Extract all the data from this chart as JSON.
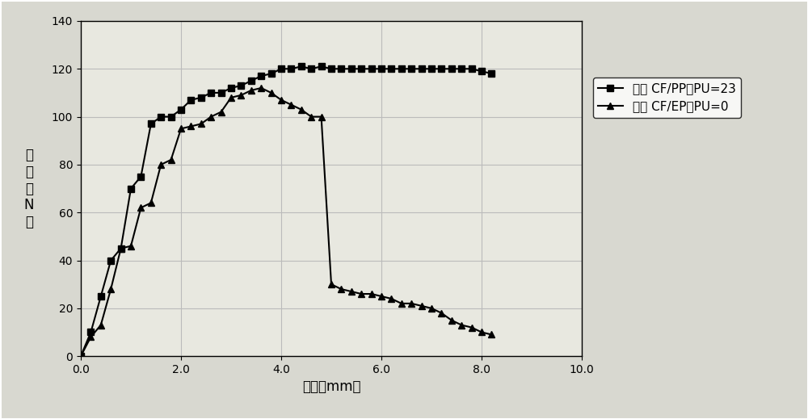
{
  "series1_label": "应力 CF/PP：PU=23",
  "series2_label": "应力 CF/EP：PU=0",
  "series1_x": [
    0.0,
    0.2,
    0.4,
    0.6,
    0.8,
    1.0,
    1.2,
    1.4,
    1.6,
    1.8,
    2.0,
    2.2,
    2.4,
    2.6,
    2.8,
    3.0,
    3.2,
    3.4,
    3.6,
    3.8,
    4.0,
    4.2,
    4.4,
    4.6,
    4.8,
    5.0,
    5.2,
    5.4,
    5.6,
    5.8,
    6.0,
    6.2,
    6.4,
    6.6,
    6.8,
    7.0,
    7.2,
    7.4,
    7.6,
    7.8,
    8.0,
    8.2
  ],
  "series1_y": [
    0,
    10,
    25,
    40,
    45,
    70,
    75,
    97,
    100,
    100,
    103,
    107,
    108,
    110,
    110,
    112,
    113,
    115,
    117,
    118,
    120,
    120,
    121,
    120,
    121,
    120,
    120,
    120,
    120,
    120,
    120,
    120,
    120,
    120,
    120,
    120,
    120,
    120,
    120,
    120,
    119,
    118
  ],
  "series2_x": [
    0.0,
    0.2,
    0.4,
    0.6,
    0.8,
    1.0,
    1.2,
    1.4,
    1.6,
    1.8,
    2.0,
    2.2,
    2.4,
    2.6,
    2.8,
    3.0,
    3.2,
    3.4,
    3.6,
    3.8,
    4.0,
    4.2,
    4.4,
    4.6,
    4.8,
    5.0,
    5.2,
    5.4,
    5.6,
    5.8,
    6.0,
    6.2,
    6.4,
    6.6,
    6.8,
    7.0,
    7.2,
    7.4,
    7.6,
    7.8,
    8.0,
    8.2
  ],
  "series2_y": [
    0,
    8,
    13,
    28,
    45,
    46,
    62,
    64,
    80,
    82,
    95,
    96,
    97,
    100,
    102,
    108,
    109,
    111,
    112,
    110,
    107,
    105,
    103,
    100,
    100,
    30,
    28,
    27,
    26,
    26,
    25,
    24,
    22,
    22,
    21,
    20,
    18,
    15,
    13,
    12,
    10,
    9
  ],
  "xlabel": "位移（mm）",
  "ylabel_chars": "载\n荷\n（\nN\n）",
  "xlim": [
    0.0,
    10.0
  ],
  "ylim": [
    0,
    140
  ],
  "xticks": [
    0.0,
    2.0,
    4.0,
    6.0,
    8.0,
    10.0
  ],
  "xtick_labels": [
    "0.0",
    "2.0",
    "4.0",
    "6.0",
    "8.0",
    "10.0"
  ],
  "yticks": [
    0,
    20,
    40,
    60,
    80,
    100,
    120,
    140
  ],
  "line_color": "#000000",
  "marker1": "s",
  "marker2": "^",
  "background_color": "#f5f5f0",
  "plot_bg_color": "#e8e8e0",
  "grid_color": "#bbbbbb",
  "legend_fontsize": 11,
  "axis_fontsize": 12,
  "tick_fontsize": 10
}
